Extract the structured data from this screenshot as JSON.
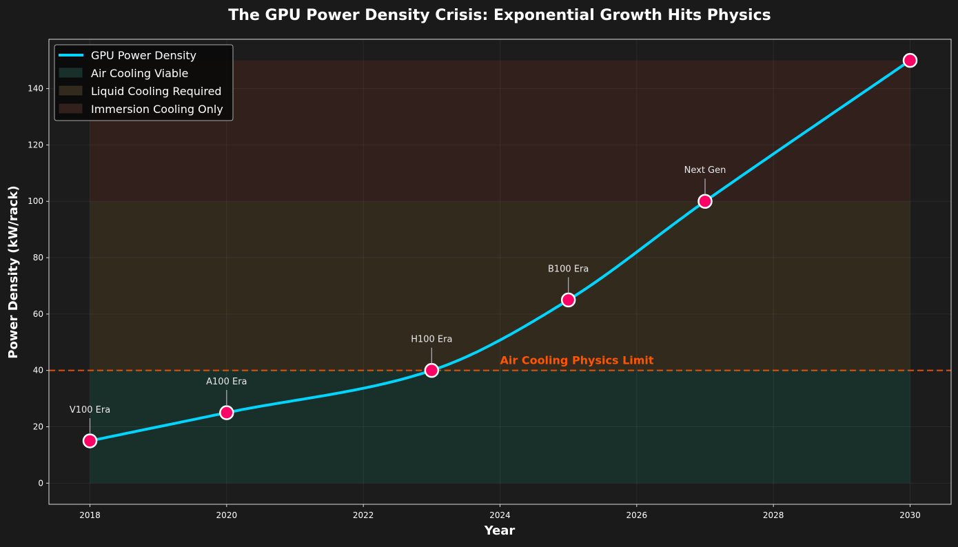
{
  "chart_data": {
    "type": "line",
    "title": "The GPU Power Density Crisis: Exponential Growth Hits Physics",
    "xlabel": "Year",
    "ylabel": "Power Density (kW/rack)",
    "xlim": [
      2017.4,
      2030.6
    ],
    "ylim": [
      -7.5,
      157.5
    ],
    "xticks": [
      2018,
      2020,
      2022,
      2024,
      2026,
      2028,
      2030
    ],
    "yticks": [
      0,
      20,
      40,
      60,
      80,
      100,
      120,
      140
    ],
    "grid": true,
    "legend_position": "top-left",
    "series": [
      {
        "name": "GPU Power Density",
        "color": "#00d4ff",
        "x": [
          2018,
          2020,
          2023,
          2025,
          2027,
          2030
        ],
        "y": [
          15,
          25,
          40,
          65,
          100,
          150
        ]
      }
    ],
    "marker_color": "#ff0066",
    "zones": [
      {
        "name": "Air Cooling Viable",
        "y": [
          0,
          40
        ],
        "color": "#19302a"
      },
      {
        "name": "Liquid Cooling Required",
        "y": [
          40,
          100
        ],
        "color": "#322a1d"
      },
      {
        "name": "Immersion Cooling Only",
        "y": [
          100,
          150
        ],
        "color": "#32201c"
      }
    ],
    "zone_x": [
      2018,
      2030
    ],
    "threshold": {
      "y": 40,
      "label": "Air Cooling Physics Limit",
      "label_x": 2024,
      "color": "#ff5500"
    },
    "annotations": [
      {
        "text": "V100 Era",
        "x": 2018,
        "y": 15
      },
      {
        "text": "A100 Era",
        "x": 2020,
        "y": 25
      },
      {
        "text": "H100 Era",
        "x": 2023,
        "y": 40
      },
      {
        "text": "B100 Era",
        "x": 2025,
        "y": 65
      },
      {
        "text": "Next Gen",
        "x": 2027,
        "y": 100
      }
    ]
  }
}
